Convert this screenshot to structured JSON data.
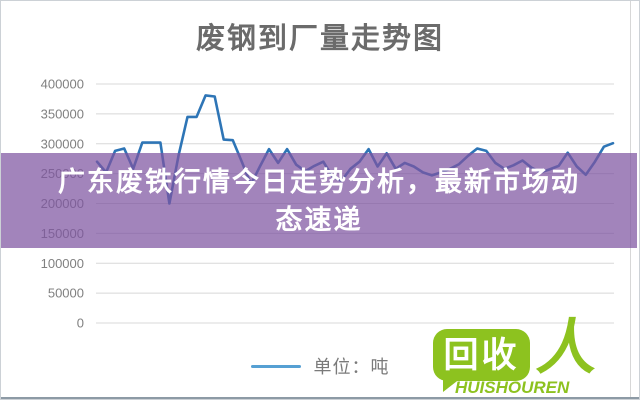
{
  "chart": {
    "title": "废钢到厂量走势图",
    "legend_label": "单位：吨"
  },
  "banner": {
    "full_text": "广东废铁行情今日走势分析，最新市场动态速递",
    "line1": "广东废铁行情今日走势分析，最新市场动",
    "line2": "态速递",
    "bg_color": "#7E54A1",
    "bg_opacity": 0.72,
    "text_color": "#FFFFFF"
  },
  "logo": {
    "bubble_text": "回收",
    "person_glyph": "人",
    "caption": "HUISHOUREN",
    "green": "#8DC21F"
  },
  "chart_data": {
    "type": "line",
    "title": "废钢到厂量走势图",
    "ylabel": "",
    "xlabel": "",
    "ylim": [
      0,
      400000
    ],
    "grid": true,
    "legend_position": "bottom",
    "x_tick_labels_visible": false,
    "line_color": "#2E75B6",
    "legend_line_color": "#56A0D3",
    "grid_color": "#D8D8D8",
    "tick_label_color": "#808080",
    "y_ticks": [
      {
        "value": 0,
        "label": "0"
      },
      {
        "value": 50000,
        "label": "50000"
      },
      {
        "value": 100000,
        "label": "100000"
      },
      {
        "value": 150000,
        "label": "150000"
      },
      {
        "value": 200000,
        "label": "200000"
      },
      {
        "value": 250000,
        "label": "250000"
      },
      {
        "value": 300000,
        "label": "300000"
      },
      {
        "value": 350000,
        "label": "350000"
      },
      {
        "value": 400000,
        "label": "400000"
      }
    ],
    "series": [
      {
        "name": "单位：吨",
        "values": [
          270000,
          252000,
          288000,
          292000,
          258000,
          302000,
          302000,
          302000,
          200000,
          280000,
          345000,
          345000,
          381000,
          379000,
          307000,
          306000,
          270000,
          232000,
          262000,
          291000,
          268000,
          291000,
          265000,
          254000,
          263000,
          270000,
          245000,
          238000,
          258000,
          270000,
          291000,
          262000,
          284000,
          258000,
          268000,
          262000,
          252000,
          247000,
          252000,
          258000,
          266000,
          280000,
          292000,
          288000,
          268000,
          258000,
          264000,
          272000,
          260000,
          252000,
          257000,
          263000,
          285000,
          262000,
          248000,
          270000,
          295000,
          301000
        ]
      }
    ]
  }
}
